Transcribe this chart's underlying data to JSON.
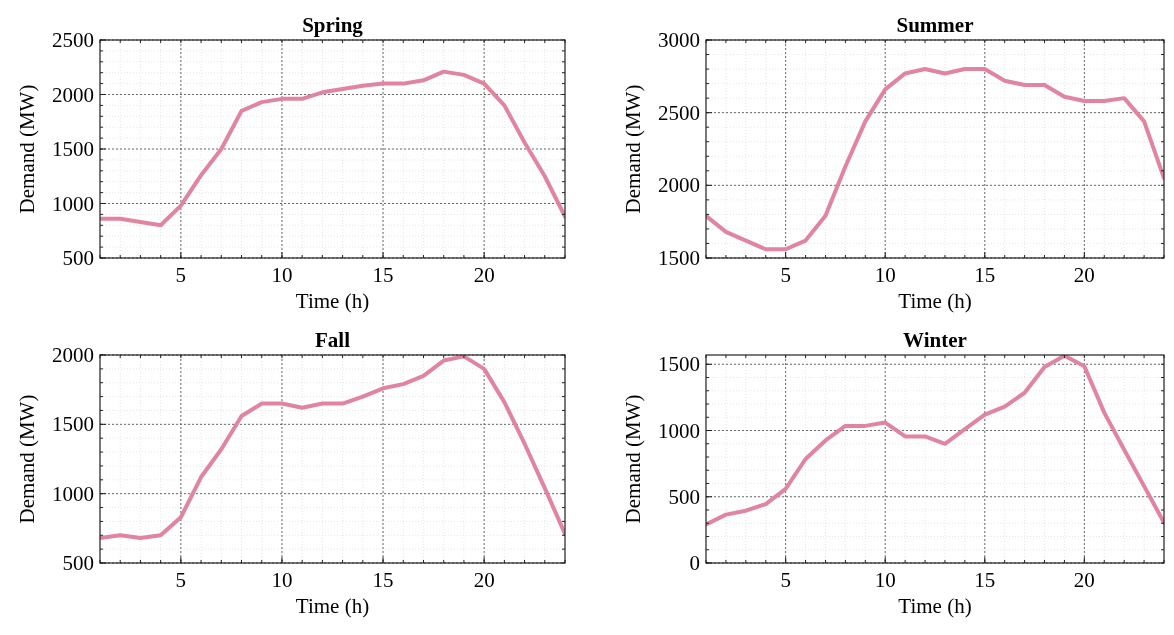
{
  "chart_data": [
    {
      "type": "line",
      "title": "Spring",
      "xlabel": "Time (h)",
      "ylabel": "Demand (MW)",
      "x": [
        1,
        2,
        3,
        4,
        5,
        6,
        7,
        8,
        9,
        10,
        11,
        12,
        13,
        14,
        15,
        16,
        17,
        18,
        19,
        20,
        21,
        22,
        23,
        24
      ],
      "xlim": [
        1,
        24
      ],
      "xticks": [
        5,
        10,
        15,
        20
      ],
      "ylim": [
        500,
        2500
      ],
      "yticks": [
        500,
        1000,
        1500,
        2000,
        2500
      ],
      "grid": true,
      "line_style": "solid",
      "marker": "none",
      "series": [
        {
          "color": "#e0849f",
          "values": [
            860,
            860,
            830,
            800,
            980,
            1260,
            1500,
            1850,
            1930,
            1960,
            1960,
            2020,
            2050,
            2080,
            2100,
            2100,
            2130,
            2210,
            2180,
            2100,
            1900,
            1560,
            1250,
            880
          ]
        }
      ]
    },
    {
      "type": "line",
      "title": "Summer",
      "xlabel": "Time (h)",
      "ylabel": "Demand (MW)",
      "x": [
        1,
        2,
        3,
        4,
        5,
        6,
        7,
        8,
        9,
        10,
        11,
        12,
        13,
        14,
        15,
        16,
        17,
        18,
        19,
        20,
        21,
        22,
        23,
        24
      ],
      "xlim": [
        1,
        24
      ],
      "xticks": [
        5,
        10,
        15,
        20
      ],
      "ylim": [
        1500,
        3000
      ],
      "yticks": [
        1500,
        2000,
        2500,
        3000
      ],
      "grid": true,
      "line_style": "solid",
      "marker": "none",
      "series": [
        {
          "color": "#e0849f",
          "values": [
            1790,
            1680,
            1620,
            1560,
            1560,
            1620,
            1790,
            2130,
            2440,
            2660,
            2770,
            2800,
            2770,
            2800,
            2800,
            2720,
            2690,
            2690,
            2610,
            2580,
            2580,
            2600,
            2440,
            2050
          ]
        }
      ]
    },
    {
      "type": "line",
      "title": "Fall",
      "xlabel": "Time (h)",
      "ylabel": "Demand (MW)",
      "x": [
        1,
        2,
        3,
        4,
        5,
        6,
        7,
        8,
        9,
        10,
        11,
        12,
        13,
        14,
        15,
        16,
        17,
        18,
        19,
        20,
        21,
        22,
        23,
        24
      ],
      "xlim": [
        1,
        24
      ],
      "xticks": [
        5,
        10,
        15,
        20
      ],
      "ylim": [
        500,
        2000
      ],
      "yticks": [
        500,
        1000,
        1500,
        2000
      ],
      "grid": true,
      "line_style": "solid",
      "marker": "none",
      "series": [
        {
          "color": "#e0849f",
          "values": [
            680,
            700,
            680,
            700,
            830,
            1120,
            1320,
            1560,
            1650,
            1650,
            1620,
            1650,
            1650,
            1700,
            1760,
            1790,
            1850,
            1960,
            1990,
            1900,
            1660,
            1360,
            1040,
            710
          ]
        }
      ]
    },
    {
      "type": "line",
      "title": "Winter",
      "xlabel": "Time (h)",
      "ylabel": "Demand (MW)",
      "x": [
        1,
        2,
        3,
        4,
        5,
        6,
        7,
        8,
        9,
        10,
        11,
        12,
        13,
        14,
        15,
        16,
        17,
        18,
        19,
        20,
        21,
        22,
        23,
        24
      ],
      "xlim": [
        1,
        24
      ],
      "xticks": [
        5,
        10,
        15,
        20
      ],
      "ylim": [
        0,
        1570
      ],
      "yticks": [
        0,
        500,
        1000,
        1500
      ],
      "grid": true,
      "line_style": "solid",
      "marker": "none",
      "series": [
        {
          "color": "#e0849f",
          "values": [
            290,
            365,
            395,
            445,
            560,
            785,
            925,
            1035,
            1035,
            1060,
            955,
            955,
            900,
            1010,
            1120,
            1180,
            1285,
            1480,
            1565,
            1485,
            1135,
            855,
            580,
            305
          ]
        }
      ]
    }
  ]
}
